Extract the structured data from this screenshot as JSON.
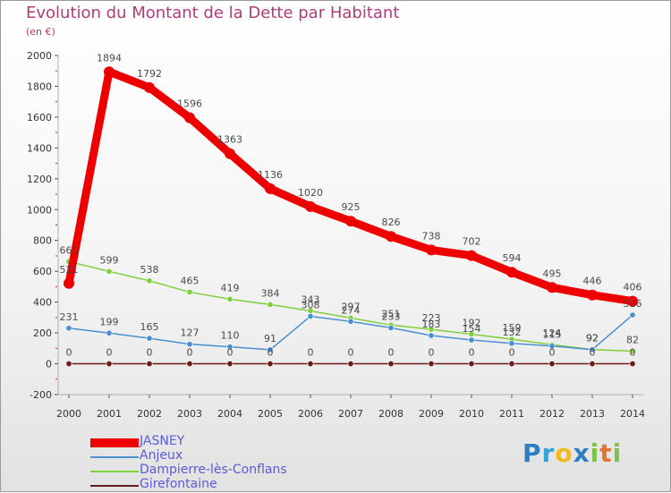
{
  "chart_data": {
    "type": "line",
    "title": "Evolution du Montant de la Dette par Habitant",
    "subtitle": "(en €)",
    "xlabel": "",
    "ylabel": "",
    "ylim": [
      -200,
      2000
    ],
    "yticks": [
      -200,
      0,
      200,
      400,
      600,
      800,
      1000,
      1200,
      1400,
      1600,
      1800,
      2000
    ],
    "grid": false,
    "legend_position": "bottom-left",
    "x": [
      "2000",
      "2001",
      "2002",
      "2003",
      "2004",
      "2005",
      "2006",
      "2007",
      "2008",
      "2009",
      "2010",
      "2011",
      "2012",
      "2013",
      "2014"
    ],
    "series": [
      {
        "name": "Girefontaine",
        "color": "#6b1a1a",
        "values": [
          0,
          0,
          0,
          0,
          0,
          0,
          0,
          0,
          0,
          0,
          0,
          0,
          0,
          0,
          0
        ]
      },
      {
        "name": "Dampierre-lès-Conflans",
        "color": "#7fcf3a",
        "values": [
          663,
          599,
          538,
          465,
          419,
          384,
          343,
          297,
          251,
          223,
          192,
          159,
          124,
          92,
          82
        ]
      },
      {
        "name": "Anjeux",
        "color": "#4a8fd0",
        "values": [
          231,
          199,
          165,
          127,
          110,
          91,
          308,
          274,
          233,
          183,
          154,
          132,
          115,
          92,
          316
        ]
      },
      {
        "name": "JASNEY",
        "color": "#ee0000",
        "values": [
          521,
          1894,
          1792,
          1596,
          1363,
          1136,
          1020,
          925,
          826,
          738,
          702,
          594,
          495,
          446,
          406
        ]
      }
    ],
    "value_label_color": "#4a4a4a"
  },
  "legend_items": [
    {
      "label": "JASNEY",
      "color": "#ee0000",
      "thickness": 10
    },
    {
      "label": "Anjeux",
      "color": "#4a8fd0",
      "thickness": 2
    },
    {
      "label": "Dampierre-lès-Conflans",
      "color": "#7fcf3a",
      "thickness": 2
    },
    {
      "label": "Girefontaine",
      "color": "#6b1a1a",
      "thickness": 2
    }
  ],
  "logo": {
    "letters": [
      "P",
      "r",
      "o",
      "x",
      "i",
      "t",
      "i"
    ]
  }
}
